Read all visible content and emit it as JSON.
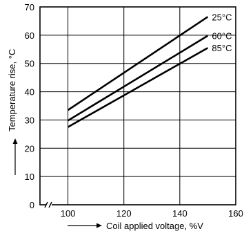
{
  "chart_data": {
    "type": "line",
    "xlabel": "Coil applied voltage, %V",
    "ylabel": "Temperature rise, °C",
    "xlim": [
      90,
      160
    ],
    "ylim": [
      0,
      70
    ],
    "x_ticks": [
      "100",
      "120",
      "140",
      "160"
    ],
    "y_ticks": [
      "0",
      "10",
      "20",
      "30",
      "40",
      "50",
      "60",
      "70"
    ],
    "axis_break": "x-axis between 90 and 100",
    "grid": true,
    "series": [
      {
        "name": "25°C",
        "x": [
          100,
          150
        ],
        "y": [
          33.5,
          66.5
        ]
      },
      {
        "name": "60°C",
        "x": [
          100,
          150
        ],
        "y": [
          29.8,
          59.8
        ]
      },
      {
        "name": "85°C",
        "x": [
          100,
          150
        ],
        "y": [
          27.5,
          55.5
        ]
      }
    ]
  }
}
